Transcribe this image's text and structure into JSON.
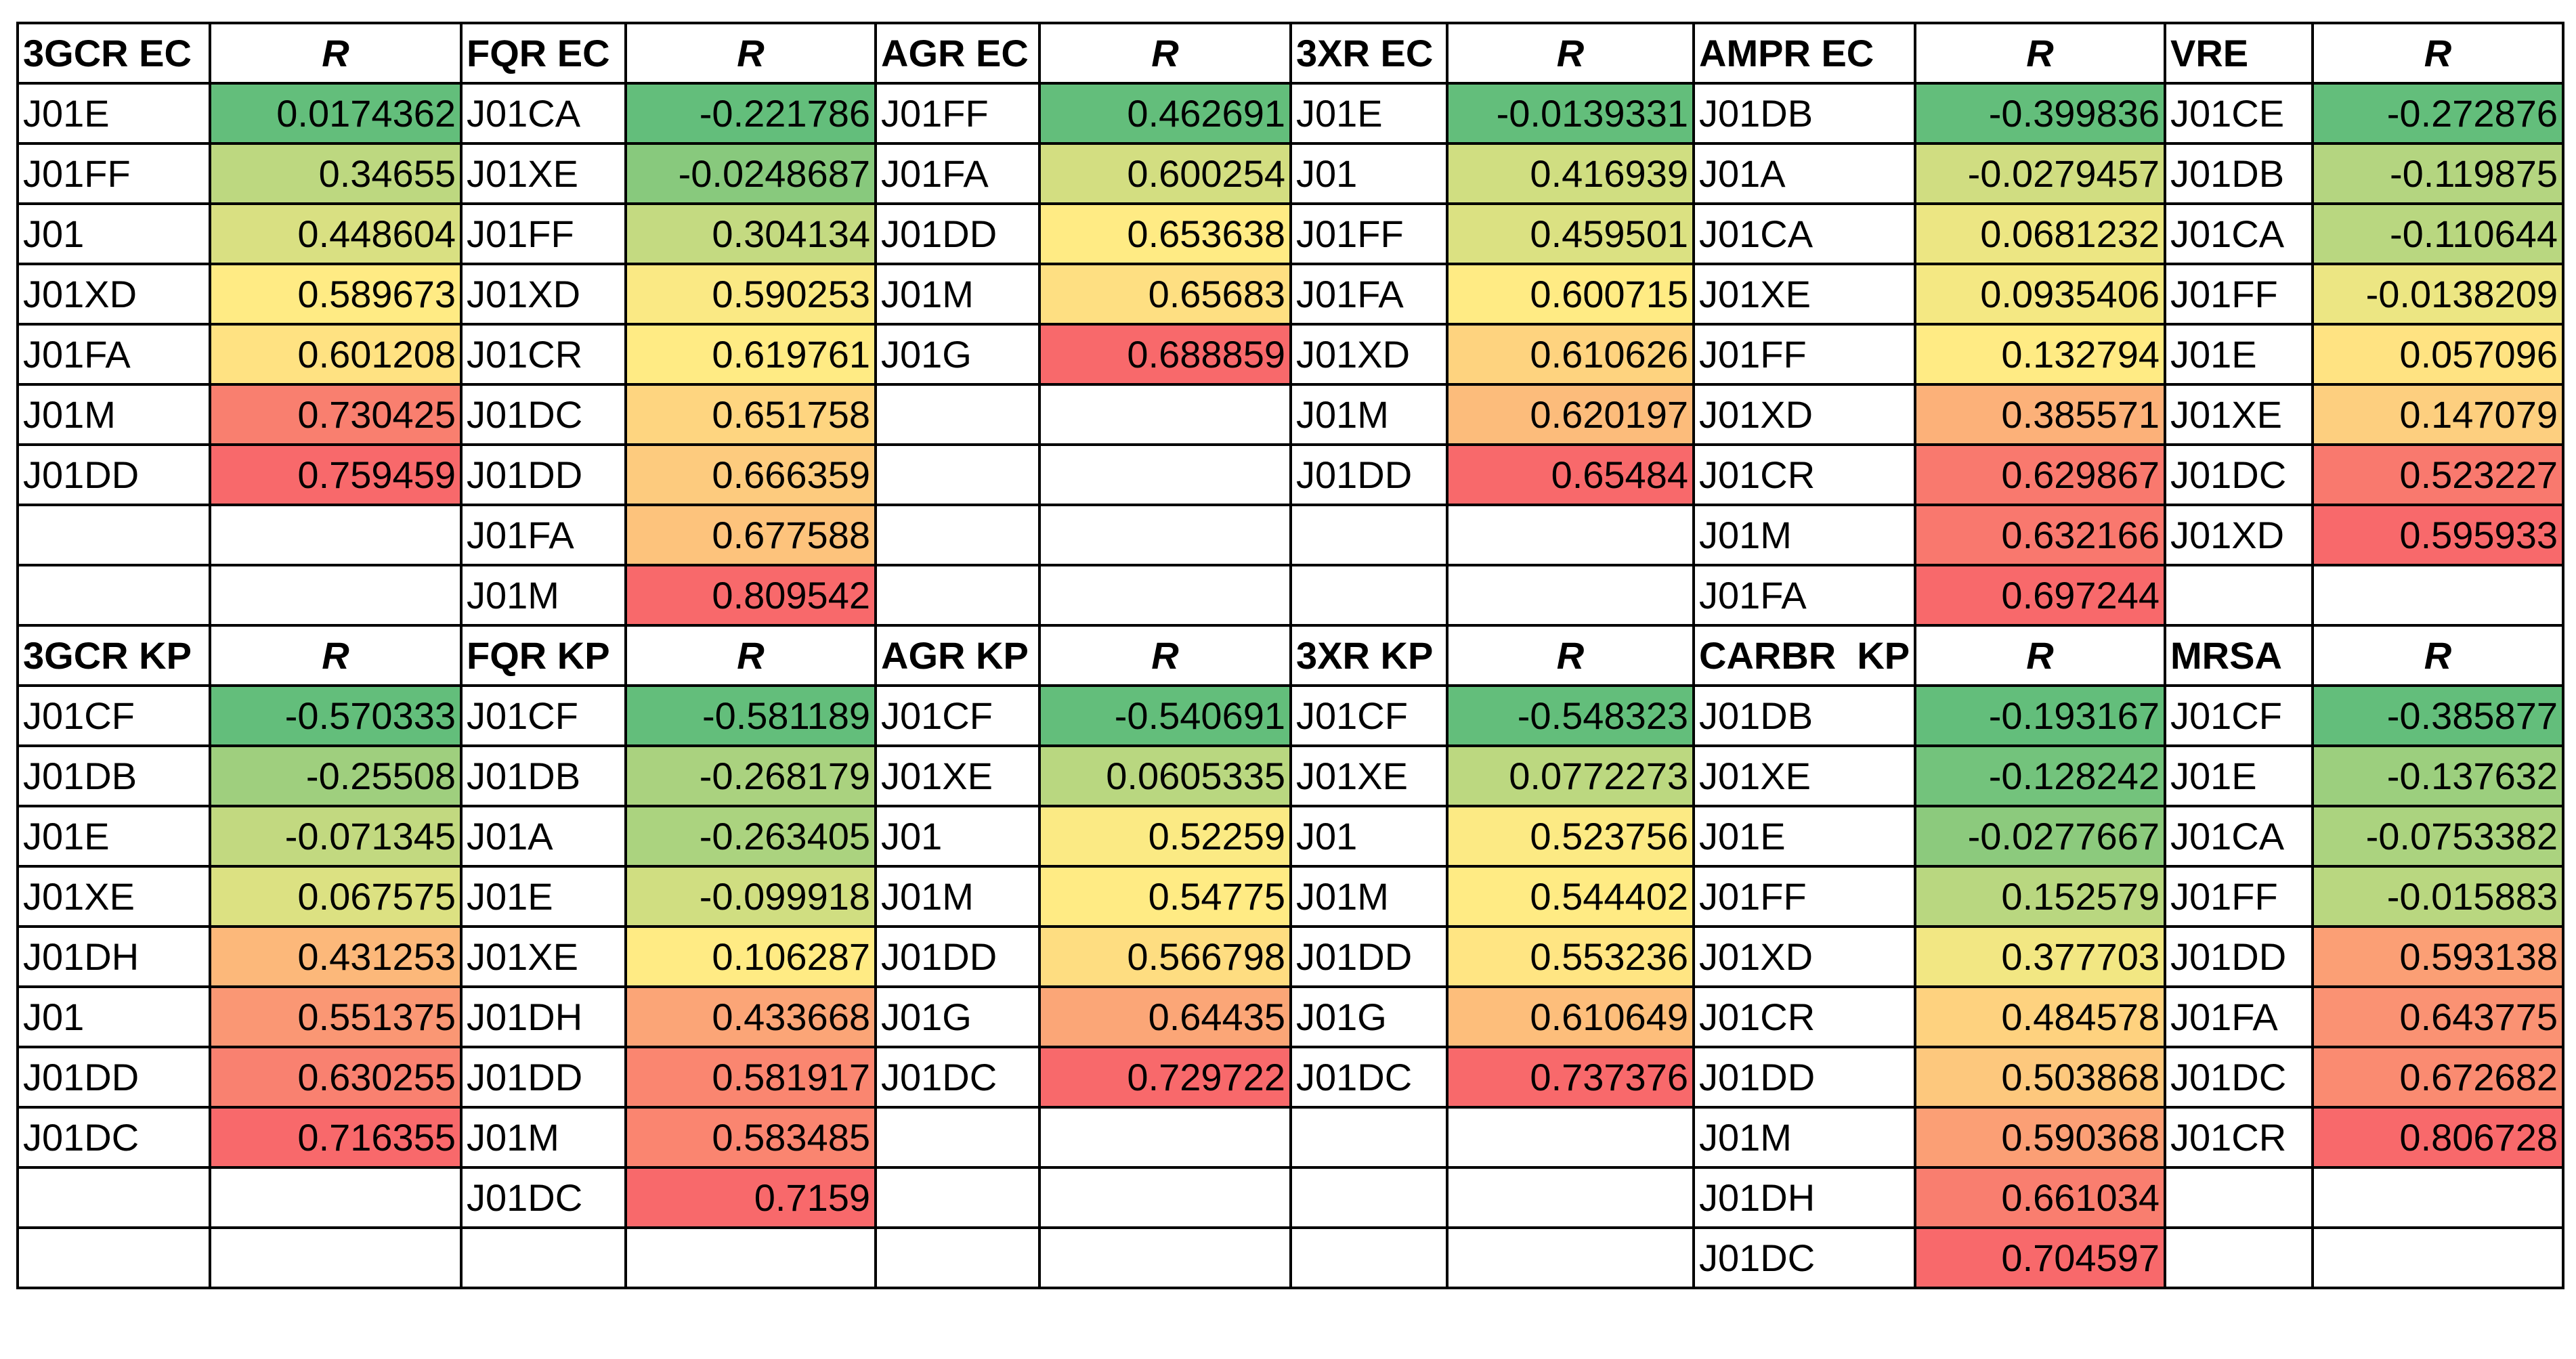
{
  "color_scale": [
    "#63be7b",
    "#ffeb84",
    "#f8696b"
  ],
  "sections": [
    {
      "blocks": [
        {
          "header": "3GCR EC",
          "value_header": "R",
          "rows": [
            {
              "label": "J01E",
              "value": 0.0174362
            },
            {
              "label": "J01FF",
              "value": 0.34655
            },
            {
              "label": "J01",
              "value": 0.448604
            },
            {
              "label": "J01XD",
              "value": 0.589673
            },
            {
              "label": "J01FA",
              "value": 0.601208
            },
            {
              "label": "J01M",
              "value": 0.730425
            },
            {
              "label": "J01DD",
              "value": 0.759459
            }
          ]
        },
        {
          "header": "FQR EC",
          "value_header": "R",
          "rows": [
            {
              "label": "J01CA",
              "value": -0.221786
            },
            {
              "label": "J01XE",
              "value": -0.0248687
            },
            {
              "label": "J01FF",
              "value": 0.304134
            },
            {
              "label": "J01XD",
              "value": 0.590253
            },
            {
              "label": "J01CR",
              "value": 0.619761
            },
            {
              "label": "J01DC",
              "value": 0.651758
            },
            {
              "label": "J01DD",
              "value": 0.666359
            },
            {
              "label": "J01FA",
              "value": 0.677588
            },
            {
              "label": "J01M",
              "value": 0.809542
            }
          ]
        },
        {
          "header": "AGR EC",
          "value_header": "R",
          "rows": [
            {
              "label": "J01FF",
              "value": 0.462691
            },
            {
              "label": "J01FA",
              "value": 0.600254
            },
            {
              "label": "J01DD",
              "value": 0.653638
            },
            {
              "label": "J01M",
              "value": 0.65683
            },
            {
              "label": "J01G",
              "value": 0.688859
            }
          ]
        },
        {
          "header": "3XR EC",
          "value_header": "R",
          "rows": [
            {
              "label": "J01E",
              "value": -0.0139331
            },
            {
              "label": "J01",
              "value": 0.416939
            },
            {
              "label": "J01FF",
              "value": 0.459501
            },
            {
              "label": "J01FA",
              "value": 0.600715
            },
            {
              "label": "J01XD",
              "value": 0.610626
            },
            {
              "label": "J01M",
              "value": 0.620197
            },
            {
              "label": "J01DD",
              "value": 0.65484
            }
          ]
        },
        {
          "header": "AMPR EC",
          "value_header": "R",
          "rows": [
            {
              "label": "J01DB",
              "value": -0.399836
            },
            {
              "label": "J01A",
              "value": -0.0279457
            },
            {
              "label": "J01CA",
              "value": 0.0681232
            },
            {
              "label": "J01XE",
              "value": 0.0935406
            },
            {
              "label": "J01FF",
              "value": 0.132794
            },
            {
              "label": "J01XD",
              "value": 0.385571
            },
            {
              "label": "J01CR",
              "value": 0.629867
            },
            {
              "label": "J01M",
              "value": 0.632166
            },
            {
              "label": "J01FA",
              "value": 0.697244
            }
          ]
        },
        {
          "header": "VRE",
          "value_header": "R",
          "rows": [
            {
              "label": "J01CE",
              "value": -0.272876
            },
            {
              "label": "J01DB",
              "value": -0.119875
            },
            {
              "label": "J01CA",
              "value": -0.110644
            },
            {
              "label": "J01FF",
              "value": -0.0138209
            },
            {
              "label": "J01E",
              "value": 0.057096
            },
            {
              "label": "J01XE",
              "value": 0.147079
            },
            {
              "label": "J01DC",
              "value": 0.523227
            },
            {
              "label": "J01XD",
              "value": 0.595933
            }
          ]
        }
      ]
    },
    {
      "blocks": [
        {
          "header": "3GCR KP",
          "value_header": "R",
          "rows": [
            {
              "label": "J01CF",
              "value": -0.570333
            },
            {
              "label": "J01DB",
              "value": -0.25508
            },
            {
              "label": "J01E",
              "value": -0.071345
            },
            {
              "label": "J01XE",
              "value": 0.067575
            },
            {
              "label": "J01DH",
              "value": 0.431253
            },
            {
              "label": "J01",
              "value": 0.551375
            },
            {
              "label": "J01DD",
              "value": 0.630255
            },
            {
              "label": "J01DC",
              "value": 0.716355
            }
          ]
        },
        {
          "header": "FQR KP",
          "value_header": "R",
          "rows": [
            {
              "label": "J01CF",
              "value": -0.581189
            },
            {
              "label": "J01DB",
              "value": -0.268179
            },
            {
              "label": "J01A",
              "value": -0.263405
            },
            {
              "label": "J01E",
              "value": -0.099918
            },
            {
              "label": "J01XE",
              "value": 0.106287
            },
            {
              "label": "J01DH",
              "value": 0.433668
            },
            {
              "label": "J01DD",
              "value": 0.581917
            },
            {
              "label": "J01M",
              "value": 0.583485
            },
            {
              "label": "J01DC",
              "value": 0.7159
            }
          ]
        },
        {
          "header": "AGR KP",
          "value_header": "R",
          "rows": [
            {
              "label": "J01CF",
              "value": -0.540691
            },
            {
              "label": "J01XE",
              "value": 0.0605335
            },
            {
              "label": "J01",
              "value": 0.52259
            },
            {
              "label": "J01M",
              "value": 0.54775
            },
            {
              "label": "J01DD",
              "value": 0.566798
            },
            {
              "label": "J01G",
              "value": 0.64435
            },
            {
              "label": "J01DC",
              "value": 0.729722
            }
          ]
        },
        {
          "header": "3XR KP",
          "value_header": "R",
          "rows": [
            {
              "label": "J01CF",
              "value": -0.548323
            },
            {
              "label": "J01XE",
              "value": 0.0772273
            },
            {
              "label": "J01",
              "value": 0.523756
            },
            {
              "label": "J01M",
              "value": 0.544402
            },
            {
              "label": "J01DD",
              "value": 0.553236
            },
            {
              "label": "J01G",
              "value": 0.610649
            },
            {
              "label": "J01DC",
              "value": 0.737376
            }
          ]
        },
        {
          "header": "CARBR  KP",
          "value_header": "R",
          "rows": [
            {
              "label": "J01DB",
              "value": -0.193167
            },
            {
              "label": "J01XE",
              "value": -0.128242
            },
            {
              "label": "J01E",
              "value": -0.0277667
            },
            {
              "label": "J01FF",
              "value": 0.152579
            },
            {
              "label": "J01XD",
              "value": 0.377703
            },
            {
              "label": "J01CR",
              "value": 0.484578
            },
            {
              "label": "J01DD",
              "value": 0.503868
            },
            {
              "label": "J01M",
              "value": 0.590368
            },
            {
              "label": "J01DH",
              "value": 0.661034
            },
            {
              "label": "J01DC",
              "value": 0.704597
            }
          ]
        },
        {
          "header": "MRSA",
          "value_header": "R",
          "rows": [
            {
              "label": "J01CF",
              "value": -0.385877
            },
            {
              "label": "J01E",
              "value": -0.137632
            },
            {
              "label": "J01CA",
              "value": -0.0753382
            },
            {
              "label": "J01FF",
              "value": -0.015883
            },
            {
              "label": "J01DD",
              "value": 0.593138
            },
            {
              "label": "J01FA",
              "value": 0.643775
            },
            {
              "label": "J01DC",
              "value": 0.672682
            },
            {
              "label": "J01CR",
              "value": 0.806728
            }
          ]
        }
      ]
    }
  ]
}
